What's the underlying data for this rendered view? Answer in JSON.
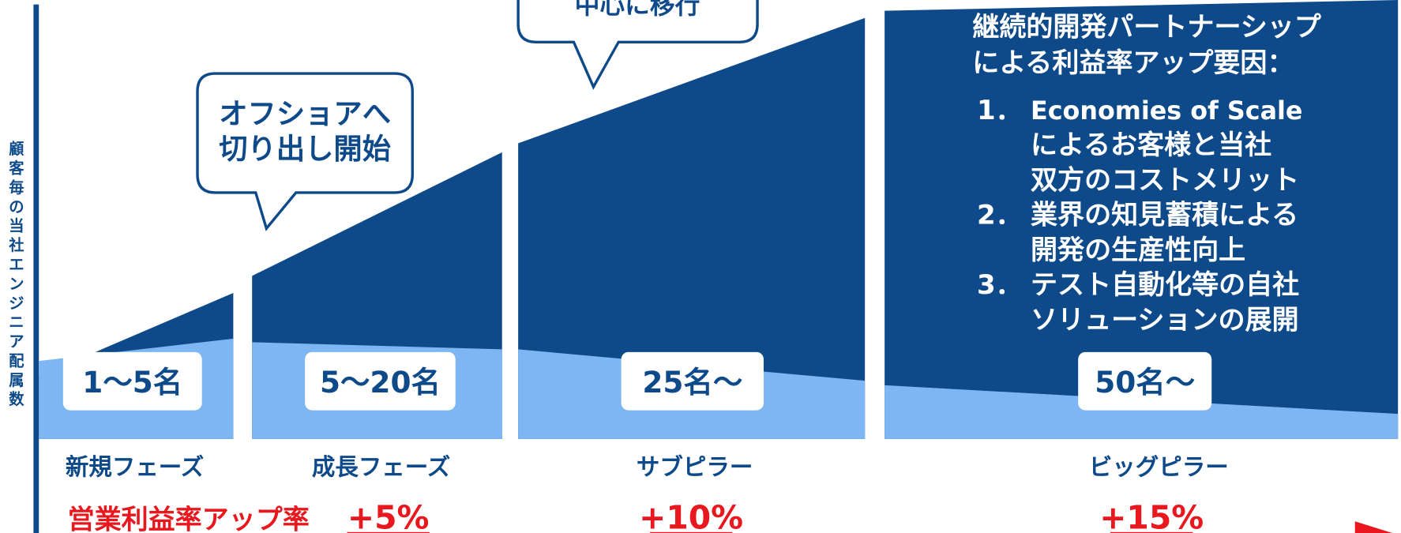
{
  "vertical_axis_label": "顧客毎の当社エンジニア配属数",
  "callouts": [
    {
      "lines": [
        "オフショアへ",
        "切り出し開始"
      ]
    },
    {
      "lines": [
        "中心に移行"
      ]
    }
  ],
  "phases": [
    {
      "name": "新規フェーズ",
      "engineers": "1〜5名"
    },
    {
      "name": "成長フェーズ",
      "engineers": "5〜20名"
    },
    {
      "name": "サブピラー",
      "engineers": "25名〜"
    },
    {
      "name": "ビッグピラー",
      "engineers": "50名〜"
    }
  ],
  "profit": {
    "label": "営業利益率アップ率",
    "rates": [
      "+5%",
      "+10%",
      "+15%"
    ]
  },
  "factors": {
    "title": [
      "継続的開発パートナーシップ",
      "による利益率アップ要因："
    ],
    "items": [
      {
        "number": "1．",
        "lines": [
          "Economies of Scale",
          "によるお客様と当社",
          "双方のコストメリット"
        ]
      },
      {
        "number": "2．",
        "lines": [
          "業界の知見蓄積による",
          "開発の生産性向上"
        ]
      },
      {
        "number": "3．",
        "lines": [
          "テスト自動化等の自社",
          "ソリューションの展開"
        ]
      }
    ]
  }
}
